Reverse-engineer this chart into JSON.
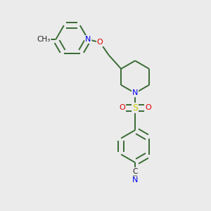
{
  "background_color": "#ebebeb",
  "bond_color": "#3a6b35",
  "atom_colors": {
    "N": "#0000ee",
    "O": "#dd0000",
    "S": "#cccc00",
    "C": "#222222"
  },
  "line_width": 1.4,
  "fig_size": [
    3.0,
    3.0
  ],
  "dpi": 100,
  "xlim": [
    0,
    10
  ],
  "ylim": [
    0,
    10.5
  ]
}
